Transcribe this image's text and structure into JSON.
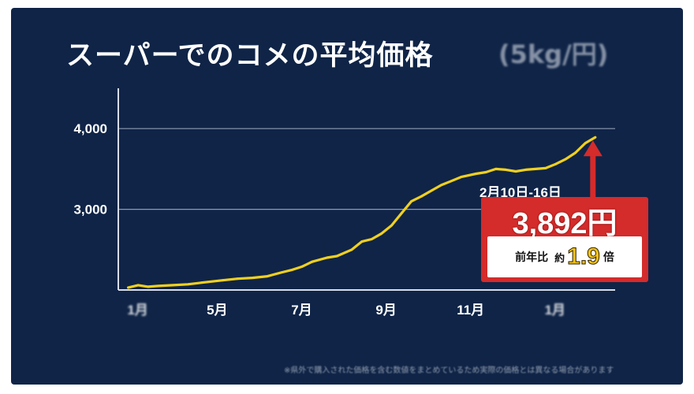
{
  "chart_data": {
    "type": "line",
    "title": "スーパーでのコメの平均価格",
    "title_tail": "(5kg/円)",
    "xlabel": "",
    "ylabel": "",
    "ylim": [
      2000,
      4500
    ],
    "y_ticks": [
      {
        "value": 3000,
        "label": "3,000"
      },
      {
        "value": 4000,
        "label": "4,000"
      }
    ],
    "x_ticks": [
      {
        "x": 0,
        "label": "1月",
        "blurred": true
      },
      {
        "x": 16,
        "label": "5月",
        "blurred": false
      },
      {
        "x": 33,
        "label": "7月",
        "blurred": false
      },
      {
        "x": 50,
        "label": "9月",
        "blurred": false
      },
      {
        "x": 67,
        "label": "11月",
        "blurred": false
      },
      {
        "x": 84,
        "label": "1月",
        "blurred": true
      }
    ],
    "xlim": [
      -2,
      98
    ],
    "grid": true,
    "line_color": "#f0d020",
    "series": [
      {
        "x": [
          0,
          2,
          4,
          6,
          9,
          12,
          16,
          19,
          22,
          25,
          28,
          31,
          33,
          35,
          37,
          40,
          42,
          45,
          47,
          49,
          51,
          53,
          55,
          57,
          59,
          61,
          63,
          65,
          67,
          70,
          72,
          74,
          76,
          78,
          80,
          82,
          84,
          86,
          88,
          90,
          92,
          94
        ],
        "y": [
          2030,
          2060,
          2040,
          2050,
          2060,
          2070,
          2100,
          2120,
          2140,
          2150,
          2170,
          2220,
          2250,
          2290,
          2350,
          2400,
          2420,
          2500,
          2600,
          2630,
          2700,
          2800,
          2950,
          3100,
          3160,
          3230,
          3300,
          3350,
          3400,
          3440,
          3460,
          3500,
          3490,
          3470,
          3490,
          3500,
          3510,
          3560,
          3620,
          3700,
          3820,
          3892
        ]
      }
    ],
    "annotation": {
      "date_label": "2月10日-16日",
      "price_label": "3,892円",
      "yoy_label": "前年比",
      "yoy_approx": "約",
      "yoy_value": "1.9",
      "yoy_unit": "倍",
      "point_value": 3892,
      "box_color": "#d42b2b",
      "arrow_color": "#d42b2b"
    },
    "footnote": "※県外で購入された価格を含む数値をまとめているため実際の価格とは異なる場合があります"
  }
}
